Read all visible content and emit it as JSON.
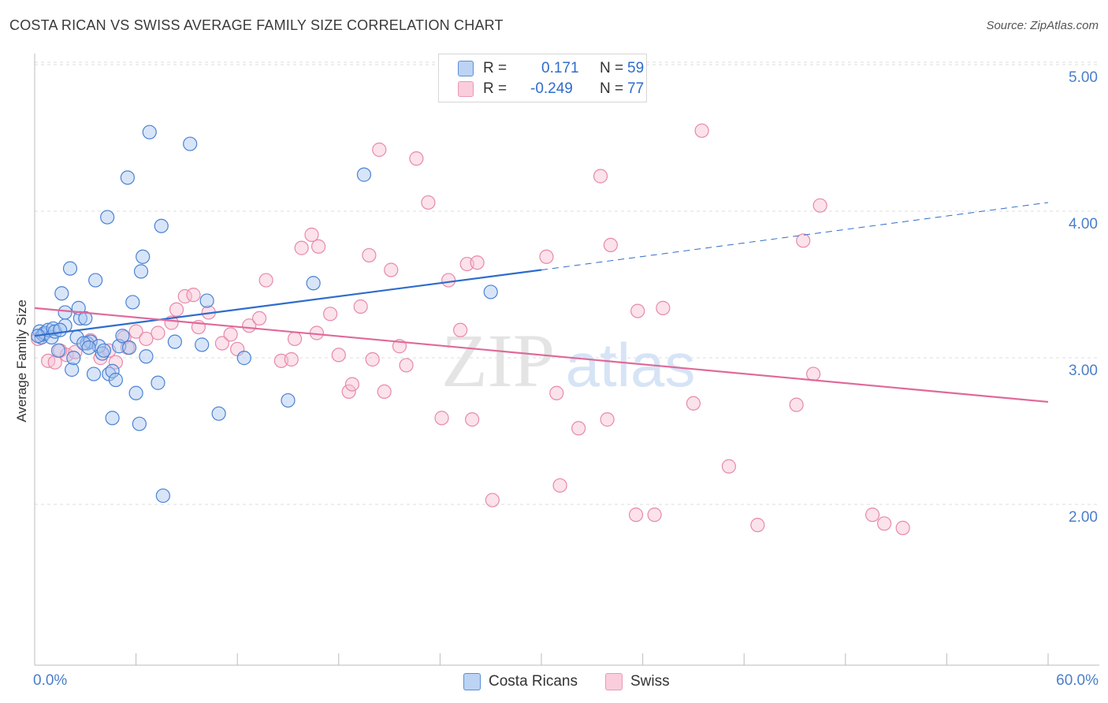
{
  "title": "COSTA RICAN VS SWISS AVERAGE FAMILY SIZE CORRELATION CHART",
  "source": "Source: ZipAtlas.com",
  "watermark": {
    "zip": "ZIP",
    "atlas": "atlas"
  },
  "legend": {
    "blue": {
      "r_label": "R =",
      "r_value": "0.171",
      "n_label": "N =",
      "n_value": "59"
    },
    "pink": {
      "r_label": "R =",
      "r_value": "-0.249",
      "n_label": "N =",
      "n_value": "77"
    }
  },
  "colors": {
    "blue_fill": "#a9c6f0",
    "blue_stroke": "#4a82d4",
    "blue_line": "#2f6ccc",
    "pink_fill": "#f6bfd2",
    "pink_stroke": "#e889a8",
    "pink_line": "#e0699a",
    "grid": "#dddddd",
    "axis": "#bbbbbb",
    "tick_text": "#4a7ec9"
  },
  "chart_data": {
    "type": "scatter",
    "title": "COSTA RICAN VS SWISS AVERAGE FAMILY SIZE CORRELATION CHART",
    "xlabel": "",
    "ylabel": "Average Family Size",
    "xlim": [
      0,
      60
    ],
    "ylim": [
      1.0,
      5.2
    ],
    "x_tick_labels": [
      {
        "value": 0,
        "label": "0.0%"
      },
      {
        "value": 60,
        "label": "60.0%"
      }
    ],
    "y_ticks": [
      {
        "value": 2.0,
        "label": "2.00"
      },
      {
        "value": 3.0,
        "label": "3.00"
      },
      {
        "value": 4.0,
        "label": "4.00"
      },
      {
        "value": 5.0,
        "label": "5.00"
      }
    ],
    "legend_position": "bottom",
    "series": [
      {
        "name": "Costa Ricans",
        "color": "blue",
        "trendline": {
          "x0": 0,
          "y0": 3.23,
          "x1": 30,
          "y1": 3.68,
          "dashed_to_x": 60,
          "dashed_to_y": 4.14
        },
        "points": [
          [
            0.3,
            3.26
          ],
          [
            0.4,
            3.22
          ],
          [
            0.5,
            3.24
          ],
          [
            0.6,
            3.25
          ],
          [
            0.8,
            3.27
          ],
          [
            1.0,
            3.22
          ],
          [
            1.1,
            3.28
          ],
          [
            1.2,
            3.26
          ],
          [
            1.4,
            3.13
          ],
          [
            1.6,
            3.52
          ],
          [
            1.8,
            3.3
          ],
          [
            1.8,
            3.39
          ],
          [
            2.1,
            3.69
          ],
          [
            2.2,
            3.0
          ],
          [
            2.3,
            3.08
          ],
          [
            2.5,
            3.22
          ],
          [
            2.6,
            3.42
          ],
          [
            2.7,
            3.35
          ],
          [
            3.0,
            3.35
          ],
          [
            3.1,
            3.18
          ],
          [
            3.3,
            3.19
          ],
          [
            3.5,
            2.97
          ],
          [
            3.6,
            3.61
          ],
          [
            3.8,
            3.16
          ],
          [
            4.0,
            3.11
          ],
          [
            4.3,
            4.04
          ],
          [
            4.4,
            2.97
          ],
          [
            4.6,
            2.99
          ],
          [
            4.6,
            2.67
          ],
          [
            4.8,
            2.93
          ],
          [
            5.0,
            3.16
          ],
          [
            5.2,
            3.23
          ],
          [
            5.5,
            4.31
          ],
          [
            5.6,
            3.15
          ],
          [
            5.8,
            3.46
          ],
          [
            6.0,
            2.84
          ],
          [
            6.2,
            2.63
          ],
          [
            6.3,
            3.67
          ],
          [
            6.4,
            3.77
          ],
          [
            6.6,
            3.09
          ],
          [
            6.8,
            4.62
          ],
          [
            7.3,
            2.91
          ],
          [
            7.5,
            3.98
          ],
          [
            7.6,
            2.14
          ],
          [
            8.3,
            3.19
          ],
          [
            9.2,
            4.54
          ],
          [
            9.9,
            3.17
          ],
          [
            10.2,
            3.47
          ],
          [
            10.9,
            2.7
          ],
          [
            12.4,
            3.08
          ],
          [
            15.0,
            2.79
          ],
          [
            16.5,
            3.59
          ],
          [
            19.5,
            4.33
          ],
          [
            27.0,
            3.53
          ],
          [
            0.2,
            3.23
          ],
          [
            1.5,
            3.27
          ],
          [
            2.9,
            3.18
          ],
          [
            3.2,
            3.15
          ],
          [
            4.1,
            3.13
          ]
        ]
      },
      {
        "name": "Swiss",
        "color": "pink",
        "trendline": {
          "x0": 0,
          "y0": 3.42,
          "x1": 60,
          "y1": 2.78
        },
        "points": [
          [
            0.2,
            3.21
          ],
          [
            0.8,
            3.06
          ],
          [
            1.2,
            3.05
          ],
          [
            1.9,
            3.1
          ],
          [
            2.4,
            3.12
          ],
          [
            3.3,
            3.2
          ],
          [
            3.9,
            3.08
          ],
          [
            4.4,
            3.13
          ],
          [
            4.8,
            3.05
          ],
          [
            5.3,
            3.22
          ],
          [
            5.5,
            3.15
          ],
          [
            6.0,
            3.26
          ],
          [
            6.6,
            3.21
          ],
          [
            7.3,
            3.25
          ],
          [
            8.1,
            3.32
          ],
          [
            8.4,
            3.41
          ],
          [
            8.9,
            3.5
          ],
          [
            9.4,
            3.51
          ],
          [
            9.7,
            3.29
          ],
          [
            10.3,
            3.39
          ],
          [
            11.1,
            3.18
          ],
          [
            11.6,
            3.24
          ],
          [
            12.0,
            3.14
          ],
          [
            12.7,
            3.3
          ],
          [
            13.3,
            3.35
          ],
          [
            13.7,
            3.61
          ],
          [
            14.6,
            3.06
          ],
          [
            15.2,
            3.07
          ],
          [
            15.4,
            3.21
          ],
          [
            15.8,
            3.83
          ],
          [
            16.4,
            3.92
          ],
          [
            16.7,
            3.25
          ],
          [
            16.8,
            3.84
          ],
          [
            17.5,
            3.38
          ],
          [
            18.0,
            3.1
          ],
          [
            18.6,
            2.85
          ],
          [
            18.8,
            2.9
          ],
          [
            19.3,
            3.43
          ],
          [
            19.8,
            3.78
          ],
          [
            20.0,
            3.07
          ],
          [
            20.4,
            4.5
          ],
          [
            20.7,
            2.85
          ],
          [
            21.1,
            3.68
          ],
          [
            21.6,
            3.16
          ],
          [
            22.0,
            3.03
          ],
          [
            22.6,
            4.44
          ],
          [
            23.3,
            4.14
          ],
          [
            24.1,
            2.67
          ],
          [
            24.5,
            3.61
          ],
          [
            25.2,
            3.27
          ],
          [
            25.6,
            3.72
          ],
          [
            25.9,
            2.66
          ],
          [
            26.2,
            3.73
          ],
          [
            27.1,
            2.11
          ],
          [
            30.3,
            3.77
          ],
          [
            30.9,
            2.84
          ],
          [
            31.1,
            2.21
          ],
          [
            32.2,
            2.6
          ],
          [
            33.5,
            4.32
          ],
          [
            33.9,
            2.66
          ],
          [
            34.1,
            3.85
          ],
          [
            35.6,
            2.01
          ],
          [
            35.7,
            3.4
          ],
          [
            36.7,
            2.01
          ],
          [
            37.2,
            3.42
          ],
          [
            39.0,
            2.77
          ],
          [
            39.5,
            4.63
          ],
          [
            41.1,
            2.34
          ],
          [
            42.8,
            1.94
          ],
          [
            45.1,
            2.76
          ],
          [
            45.5,
            3.88
          ],
          [
            46.1,
            2.97
          ],
          [
            46.5,
            4.12
          ],
          [
            49.6,
            2.01
          ],
          [
            50.3,
            1.95
          ],
          [
            51.4,
            1.92
          ],
          [
            1.5,
            3.13
          ]
        ]
      }
    ]
  },
  "bottom_legend": {
    "blue_label": "Costa Ricans",
    "pink_label": "Swiss"
  }
}
